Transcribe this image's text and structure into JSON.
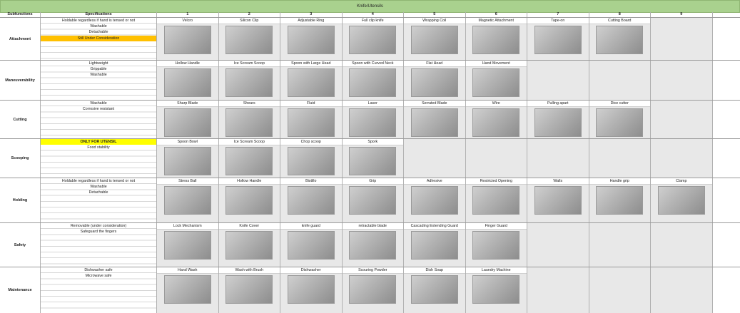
{
  "title": "Knife/Utensils",
  "headers": {
    "subfunctions": "Subfunctions",
    "specifications": "Specifications",
    "columns": [
      "1",
      "2",
      "3",
      "4",
      "5",
      "6",
      "7",
      "8",
      "9"
    ]
  },
  "rows": [
    {
      "name": "Attachment",
      "specs": [
        {
          "text": "Holdable regardless if hand is tensed or not"
        },
        {
          "text": "Washable"
        },
        {
          "text": "Detachable"
        },
        {
          "text": "Still Under Consideration",
          "hl": "orange"
        }
      ],
      "cells": [
        "Velcro",
        "Silicon Clip",
        "Adjustable Ring",
        "Full clip knife",
        "Wrapping Coil",
        "Magnetic Attachment",
        "Tape-on",
        "Cutting Board",
        ""
      ]
    },
    {
      "name": "Maneuverability",
      "specs": [
        {
          "text": "Lightweight"
        },
        {
          "text": "Grippable"
        },
        {
          "text": "Washable"
        }
      ],
      "cells": [
        "Hollow Handle",
        "Ice Scream Scoop",
        "Spoon with Large Head",
        "Spoon with Curved Neck",
        "Flat Head",
        "Hand Movement",
        "",
        "",
        ""
      ]
    },
    {
      "name": "Cutting",
      "specs": [
        {
          "text": "Washable"
        },
        {
          "text": "Corrosive resistant"
        }
      ],
      "cells": [
        "Sharp Blade",
        "Shears",
        "Fluid",
        "Laser",
        "Serrated Blade",
        "Wire",
        "Pulling apart",
        "Dice cutter",
        ""
      ]
    },
    {
      "name": "Scooping",
      "specs": [
        {
          "text": "ONLY FOR UTENSIL",
          "hl": "yellow"
        },
        {
          "text": "Food stability"
        }
      ],
      "cells": [
        "Spoon Bowl",
        "Ice Scream Scoop",
        "Chop scoop",
        "Spork",
        "",
        "",
        "",
        "",
        ""
      ]
    },
    {
      "name": "Holding",
      "specs": [
        {
          "text": "Holdable regardless if hand is tensed or not"
        },
        {
          "text": "Washable"
        },
        {
          "text": "Detachable"
        }
      ],
      "cells": [
        "Stress Ball",
        "Hollow Handle",
        "Bistillo",
        "Grip",
        "Adhesive",
        "Restricted Opening",
        "Walls",
        "Handle grip",
        "Clamp"
      ]
    },
    {
      "name": "Safety",
      "specs": [
        {
          "text": "Removable (under consideration)"
        },
        {
          "text": "Safeguard the fingers"
        }
      ],
      "cells": [
        "Lock Mechanism",
        "Knife Cover",
        "knife guard",
        "retractable blade",
        "Cascading Extending Guard",
        "Finger Guard",
        "",
        "",
        ""
      ]
    },
    {
      "name": "Maintenance",
      "specs": [
        {
          "text": "Dishwasher safe"
        },
        {
          "text": "Microwave safe"
        }
      ],
      "cells": [
        "Hand Wash",
        "Wash with Brush",
        "Dishwasher",
        "Scouring Powder",
        "Dish Soap",
        "Laundry Machine",
        "",
        "",
        ""
      ]
    }
  ]
}
